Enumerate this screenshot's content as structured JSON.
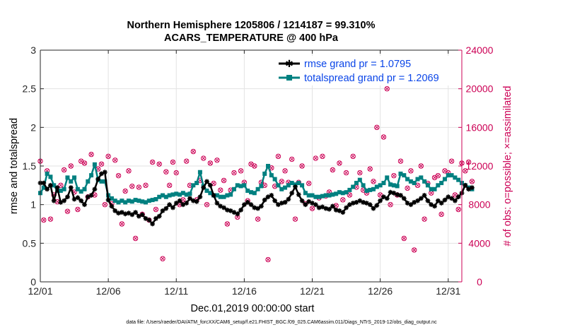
{
  "chart_data": {
    "type": "line",
    "title": "Northern Hemisphere 1205806 / 1214187 = 99.310%",
    "subtitle": "ACARS_TEMPERATURE @ 400 hPa",
    "xlabel": "Dec.01,2019 00:00:00 start",
    "ylabel_left": "rmse and totalspread",
    "ylabel_right": "# of obs: o=possible; ×=assimilated",
    "footnote": "data file: /Users/raeder/DAI/ATM_forcXX/CAM6_setup/f.e21.FHIST_BGC.f09_025.CAM6assim.011/Diags_NTrS_2019-12/obs_diag_output.nc",
    "x_ticks": [
      1,
      6,
      11,
      16,
      21,
      26,
      31
    ],
    "x_tick_labels": [
      "12/01",
      "12/06",
      "12/11",
      "12/16",
      "12/21",
      "12/26",
      "12/31"
    ],
    "xlim": [
      1,
      32
    ],
    "ylim_left": [
      0,
      3
    ],
    "y_ticks_left": [
      "0",
      "0.5",
      "1",
      "1.5",
      "2",
      "2.5",
      "3"
    ],
    "ylim_right": [
      0,
      24000
    ],
    "y_ticks_right": [
      "0",
      "4000",
      "8000",
      "12000",
      "16000",
      "20000",
      "24000"
    ],
    "grid": true,
    "legend_position": "top-right",
    "colors": {
      "rmse": "#000000",
      "spread": "#008080",
      "obs": "#cc0055",
      "legend_text": "#0a45e8"
    },
    "series": [
      {
        "name": "rmse grand pr = 1.0795",
        "axis": "left",
        "x_start": 1.0,
        "x_step": 0.25,
        "values": [
          1.28,
          1.28,
          1.2,
          1.25,
          1.05,
          1.22,
          1.03,
          1.05,
          1.1,
          1.22,
          1.07,
          1.09,
          1.05,
          1.0,
          1.1,
          1.12,
          1.2,
          1.33,
          1.4,
          1.42,
          1.06,
          0.98,
          0.92,
          0.89,
          0.9,
          0.88,
          0.89,
          0.87,
          0.9,
          0.85,
          0.87,
          0.82,
          0.8,
          0.75,
          0.82,
          0.85,
          0.92,
          0.95,
          1.0,
          0.96,
          1.02,
          1.05,
          1.0,
          1.02,
          1.08,
          1.05,
          1.04,
          1.1,
          1.22,
          1.3,
          1.25,
          1.12,
          1.02,
          0.98,
          0.96,
          0.93,
          0.92,
          0.9,
          0.88,
          0.93,
          1.0,
          1.03,
          1.0,
          0.96,
          0.95,
          0.98,
          1.06,
          1.1,
          1.12,
          1.05,
          1.0,
          1.02,
          1.03,
          1.07,
          1.15,
          1.23,
          1.13,
          1.05,
          1.0,
          1.04,
          1.02,
          1.0,
          0.96,
          0.97,
          0.95,
          0.94,
          0.98,
          0.93,
          0.92,
          0.9,
          0.96,
          1.0,
          1.02,
          1.03,
          1.05,
          1.03,
          1.02,
          1.0,
          0.95,
          0.99,
          1.05,
          1.1,
          1.08,
          1.16,
          1.15,
          1.13,
          1.12,
          1.08,
          1.02,
          1.0,
          1.03,
          1.05,
          1.08,
          1.12,
          1.05,
          1.0,
          0.98,
          1.05,
          1.02,
          1.06,
          1.1,
          1.08,
          1.05,
          1.1,
          1.15,
          1.25,
          1.2,
          1.22
        ]
      },
      {
        "name": "totalspread grand pr = 1.2069",
        "axis": "left",
        "x_start": 1.0,
        "x_step": 0.25,
        "values": [
          1.15,
          1.22,
          1.4,
          1.36,
          1.25,
          1.18,
          1.18,
          1.2,
          1.35,
          1.3,
          1.35,
          1.2,
          1.17,
          1.2,
          1.3,
          1.38,
          1.52,
          1.32,
          1.3,
          1.3,
          1.12,
          1.08,
          1.05,
          1.03,
          1.05,
          1.03,
          1.05,
          1.04,
          1.06,
          1.05,
          1.04,
          1.03,
          1.05,
          1.06,
          1.07,
          1.1,
          1.12,
          1.1,
          1.12,
          1.13,
          1.14,
          1.13,
          1.15,
          1.13,
          1.14,
          1.25,
          1.28,
          1.42,
          1.24,
          1.18,
          1.15,
          1.12,
          1.12,
          1.1,
          1.1,
          1.12,
          1.13,
          1.2,
          1.25,
          1.24,
          1.25,
          1.18,
          1.16,
          1.15,
          1.2,
          1.24,
          1.4,
          1.5,
          1.38,
          1.33,
          1.25,
          1.2,
          1.22,
          1.25,
          1.28,
          1.26,
          1.28,
          1.25,
          1.15,
          1.12,
          1.12,
          1.1,
          1.1,
          1.11,
          1.12,
          1.12,
          1.13,
          1.14,
          1.16,
          1.15,
          1.16,
          1.19,
          1.23,
          1.28,
          1.32,
          1.25,
          1.18,
          1.19,
          1.2,
          1.23,
          1.25,
          1.28,
          1.35,
          1.26,
          1.25,
          1.24,
          1.4,
          1.38,
          1.33,
          1.3,
          1.28,
          1.33,
          1.35,
          1.3,
          1.25,
          1.2,
          1.2,
          1.25,
          1.28,
          1.33,
          1.38,
          1.38,
          1.35,
          1.32,
          1.28,
          1.25,
          1.22,
          1.2
        ]
      },
      {
        "name": "# of obs possible / assimilated",
        "axis": "right",
        "markers": "circle+cross",
        "x_start": 1.0,
        "x_step": 0.25,
        "values": [
          12500,
          6400,
          11500,
          6500,
          9000,
          8300,
          10000,
          11600,
          7300,
          12000,
          9300,
          7500,
          12500,
          12300,
          8800,
          13200,
          9000,
          11700,
          12200,
          8000,
          13000,
          8100,
          12600,
          11000,
          6000,
          9400,
          11500,
          9900,
          4500,
          9800,
          7000,
          10000,
          6400,
          12400,
          7500,
          12200,
          2400,
          11400,
          10000,
          12400,
          11300,
          8000,
          8500,
          12500,
          10000,
          13500,
          8500,
          10500,
          12800,
          8000,
          12300,
          10200,
          12600,
          9500,
          10500,
          6000,
          9500,
          11300,
          6700,
          11500,
          10300,
          8400,
          12200,
          12000,
          6500,
          10300,
          10000,
          2300,
          11800,
          9900,
          13000,
          10400,
          11500,
          10300,
          12700,
          6500,
          10300,
          12000,
          8100,
          10200,
          7600,
          12800,
          8700,
          13000,
          8900,
          9300,
          11600,
          7900,
          12300,
          8500,
          11300,
          9000,
          13000,
          9800,
          11300,
          9500,
          9200,
          11700,
          10400,
          16000,
          9000,
          15000,
          20000,
          8000,
          11000,
          9000,
          12500,
          4500,
          9700,
          11500,
          3300,
          10000,
          12000,
          6500,
          10200,
          9200,
          10800,
          11000,
          7000,
          11500,
          11300,
          12500,
          9000,
          7500,
          12300,
          11500,
          12400,
          10400
        ]
      }
    ]
  }
}
